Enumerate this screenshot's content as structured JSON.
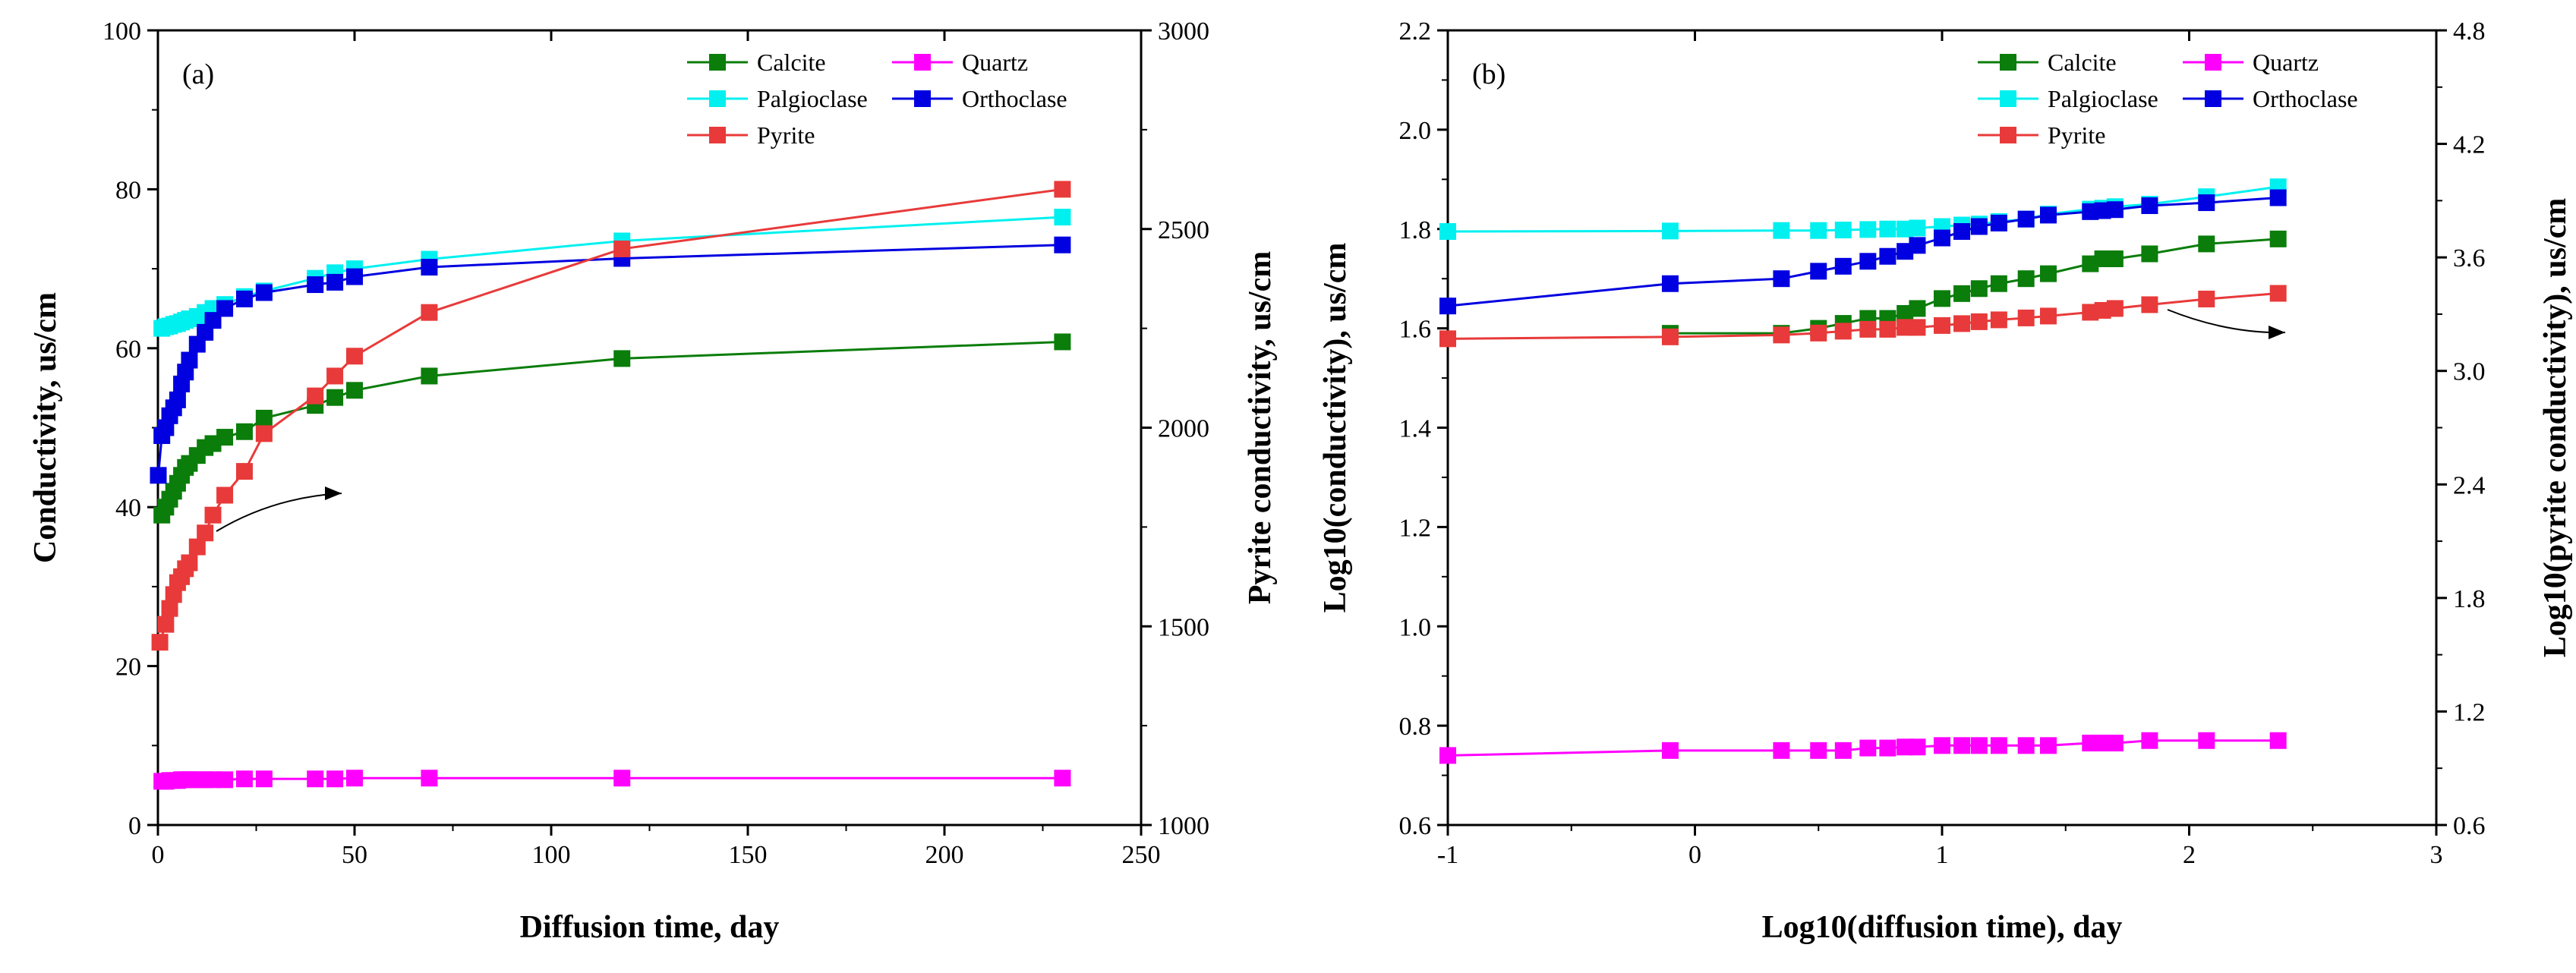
{
  "chart_data": [
    {
      "type": "line",
      "panel_label": "(a)",
      "xlabel": "Diffusion time, day",
      "ylabel": "Conductivity, us/cm",
      "y2label": "Pyrite conductivity, us/cm",
      "xlim": [
        0,
        250
      ],
      "ylim": [
        0,
        100
      ],
      "y2lim": [
        1000,
        3000
      ],
      "xticks": [
        0,
        50,
        100,
        150,
        200,
        250
      ],
      "yticks": [
        0,
        20,
        40,
        60,
        80,
        100
      ],
      "y2ticks": [
        1000,
        1500,
        2000,
        2500,
        3000
      ],
      "legend_position": "top-right",
      "series": [
        {
          "name": "Calcite",
          "color": "#0a7d0a",
          "axis": "left",
          "x": [
            1,
            2,
            3,
            4,
            5,
            6,
            7,
            8,
            10,
            12,
            14,
            17,
            22,
            27,
            40,
            45,
            50,
            69,
            118,
            230
          ],
          "y": [
            39,
            40,
            41,
            42,
            43,
            44,
            45,
            45.5,
            46.5,
            47.5,
            48,
            48.8,
            49.5,
            51.2,
            52.8,
            53.8,
            54.7,
            56.5,
            58.7,
            60.8
          ]
        },
        {
          "name": "Quartz",
          "color": "#ff00ff",
          "axis": "left",
          "x": [
            1,
            2,
            3,
            4,
            5,
            6,
            7,
            8,
            10,
            12,
            14,
            17,
            22,
            27,
            40,
            45,
            50,
            69,
            118,
            230
          ],
          "y": [
            5.5,
            5.5,
            5.6,
            5.6,
            5.6,
            5.7,
            5.7,
            5.7,
            5.7,
            5.7,
            5.7,
            5.7,
            5.8,
            5.8,
            5.8,
            5.8,
            5.9,
            5.9,
            5.9,
            5.9
          ]
        },
        {
          "name": "Palgioclase",
          "color": "#00f0f0",
          "axis": "left",
          "x": [
            1,
            2,
            3,
            4,
            5,
            6,
            7,
            8,
            10,
            12,
            14,
            17,
            22,
            27,
            40,
            45,
            50,
            69,
            118,
            230
          ],
          "y": [
            62.5,
            62.7,
            62.8,
            63,
            63.1,
            63.3,
            63.5,
            63.7,
            64,
            64.5,
            65,
            65.5,
            66.5,
            67.2,
            68.8,
            69.5,
            70,
            71.2,
            73.5,
            76.5
          ]
        },
        {
          "name": "Orthoclase",
          "color": "#0000e0",
          "axis": "left",
          "x": [
            0.1,
            1,
            2,
            3,
            4,
            5,
            6,
            7,
            8,
            10,
            12,
            14,
            17,
            22,
            27,
            40,
            45,
            50,
            69,
            118,
            230
          ],
          "y": [
            44,
            49,
            50,
            51.5,
            52.5,
            53.5,
            55.5,
            57,
            58.5,
            60.5,
            62,
            63.5,
            65,
            66.2,
            67,
            68,
            68.3,
            69,
            70.2,
            71.3,
            73
          ]
        },
        {
          "name": "Pyrite",
          "color": "#e83a3a",
          "axis": "right",
          "x": [
            0.5,
            2,
            3,
            4,
            5,
            6,
            7,
            8,
            10,
            12,
            14,
            17,
            22,
            27,
            40,
            45,
            50,
            69,
            118,
            230
          ],
          "y": [
            1460,
            1505,
            1545,
            1580,
            1610,
            1625,
            1645,
            1660,
            1700,
            1735,
            1780,
            1830,
            1890,
            1985,
            2080,
            2130,
            2180,
            2290,
            2450,
            2600
          ]
        }
      ]
    },
    {
      "type": "line",
      "panel_label": "(b)",
      "xlabel": "Log10(diffusion time), day",
      "ylabel": "Log10(conductivity), us/cm",
      "y2label": "Log10(pyrite conductivity), us/cm",
      "xlim": [
        -1,
        3
      ],
      "ylim": [
        0.6,
        2.2
      ],
      "y2lim": [
        0.6,
        4.8
      ],
      "xticks": [
        -1,
        0,
        1,
        2,
        3
      ],
      "yticks": [
        0.6,
        0.8,
        1.0,
        1.2,
        1.4,
        1.6,
        1.8,
        2.0,
        2.2
      ],
      "y2ticks": [
        0.6,
        1.2,
        1.8,
        2.4,
        3.0,
        3.6,
        4.2,
        4.8
      ],
      "legend_position": "top-right",
      "series": [
        {
          "name": "Calcite",
          "color": "#0a7d0a",
          "axis": "left",
          "x": [
            -0.1,
            0.35,
            0.5,
            0.6,
            0.7,
            0.78,
            0.85,
            0.9,
            1.0,
            1.08,
            1.15,
            1.23,
            1.34,
            1.43,
            1.6,
            1.65,
            1.7,
            1.84,
            2.07,
            2.36
          ],
          "y": [
            1.59,
            1.59,
            1.6,
            1.61,
            1.62,
            1.62,
            1.63,
            1.64,
            1.66,
            1.67,
            1.68,
            1.69,
            1.7,
            1.71,
            1.73,
            1.74,
            1.74,
            1.75,
            1.77,
            1.78
          ]
        },
        {
          "name": "Quartz",
          "color": "#ff00ff",
          "axis": "left",
          "x": [
            -1,
            -0.1,
            0.35,
            0.5,
            0.6,
            0.7,
            0.78,
            0.85,
            0.9,
            1.0,
            1.08,
            1.15,
            1.23,
            1.34,
            1.43,
            1.6,
            1.65,
            1.7,
            1.84,
            2.07,
            2.36
          ],
          "y": [
            0.74,
            0.75,
            0.75,
            0.75,
            0.75,
            0.755,
            0.755,
            0.757,
            0.757,
            0.76,
            0.76,
            0.76,
            0.76,
            0.76,
            0.76,
            0.765,
            0.765,
            0.765,
            0.77,
            0.77,
            0.77
          ]
        },
        {
          "name": "Palgioclase",
          "color": "#00f0f0",
          "axis": "left",
          "x": [
            -1,
            -0.1,
            0.35,
            0.5,
            0.6,
            0.7,
            0.78,
            0.85,
            0.9,
            1.0,
            1.08,
            1.15,
            1.23,
            1.34,
            1.43,
            1.6,
            1.65,
            1.7,
            1.84,
            2.07,
            2.36
          ],
          "y": [
            1.795,
            1.796,
            1.797,
            1.797,
            1.798,
            1.799,
            1.8,
            1.8,
            1.802,
            1.805,
            1.808,
            1.81,
            1.815,
            1.82,
            1.83,
            1.84,
            1.842,
            1.845,
            1.85,
            1.865,
            1.885
          ]
        },
        {
          "name": "Orthoclase",
          "color": "#0000e0",
          "axis": "left",
          "x": [
            -1,
            -0.1,
            0.35,
            0.5,
            0.6,
            0.7,
            0.78,
            0.85,
            0.9,
            1.0,
            1.08,
            1.15,
            1.23,
            1.34,
            1.43,
            1.6,
            1.65,
            1.7,
            1.84,
            2.07,
            2.36
          ],
          "y": [
            1.645,
            1.69,
            1.7,
            1.715,
            1.725,
            1.735,
            1.745,
            1.755,
            1.767,
            1.782,
            1.795,
            1.805,
            1.812,
            1.82,
            1.828,
            1.835,
            1.837,
            1.839,
            1.847,
            1.853,
            1.863
          ]
        },
        {
          "name": "Pyrite",
          "color": "#e83a3a",
          "axis": "right",
          "x": [
            -1,
            -0.1,
            0.35,
            0.5,
            0.6,
            0.7,
            0.78,
            0.85,
            0.9,
            1.0,
            1.08,
            1.15,
            1.23,
            1.34,
            1.43,
            1.6,
            1.65,
            1.7,
            1.84,
            2.07,
            2.36
          ],
          "y": [
            3.17,
            3.18,
            3.19,
            3.2,
            3.21,
            3.22,
            3.22,
            3.23,
            3.23,
            3.24,
            3.25,
            3.26,
            3.27,
            3.28,
            3.29,
            3.31,
            3.32,
            3.33,
            3.35,
            3.38,
            3.41
          ]
        }
      ]
    }
  ]
}
